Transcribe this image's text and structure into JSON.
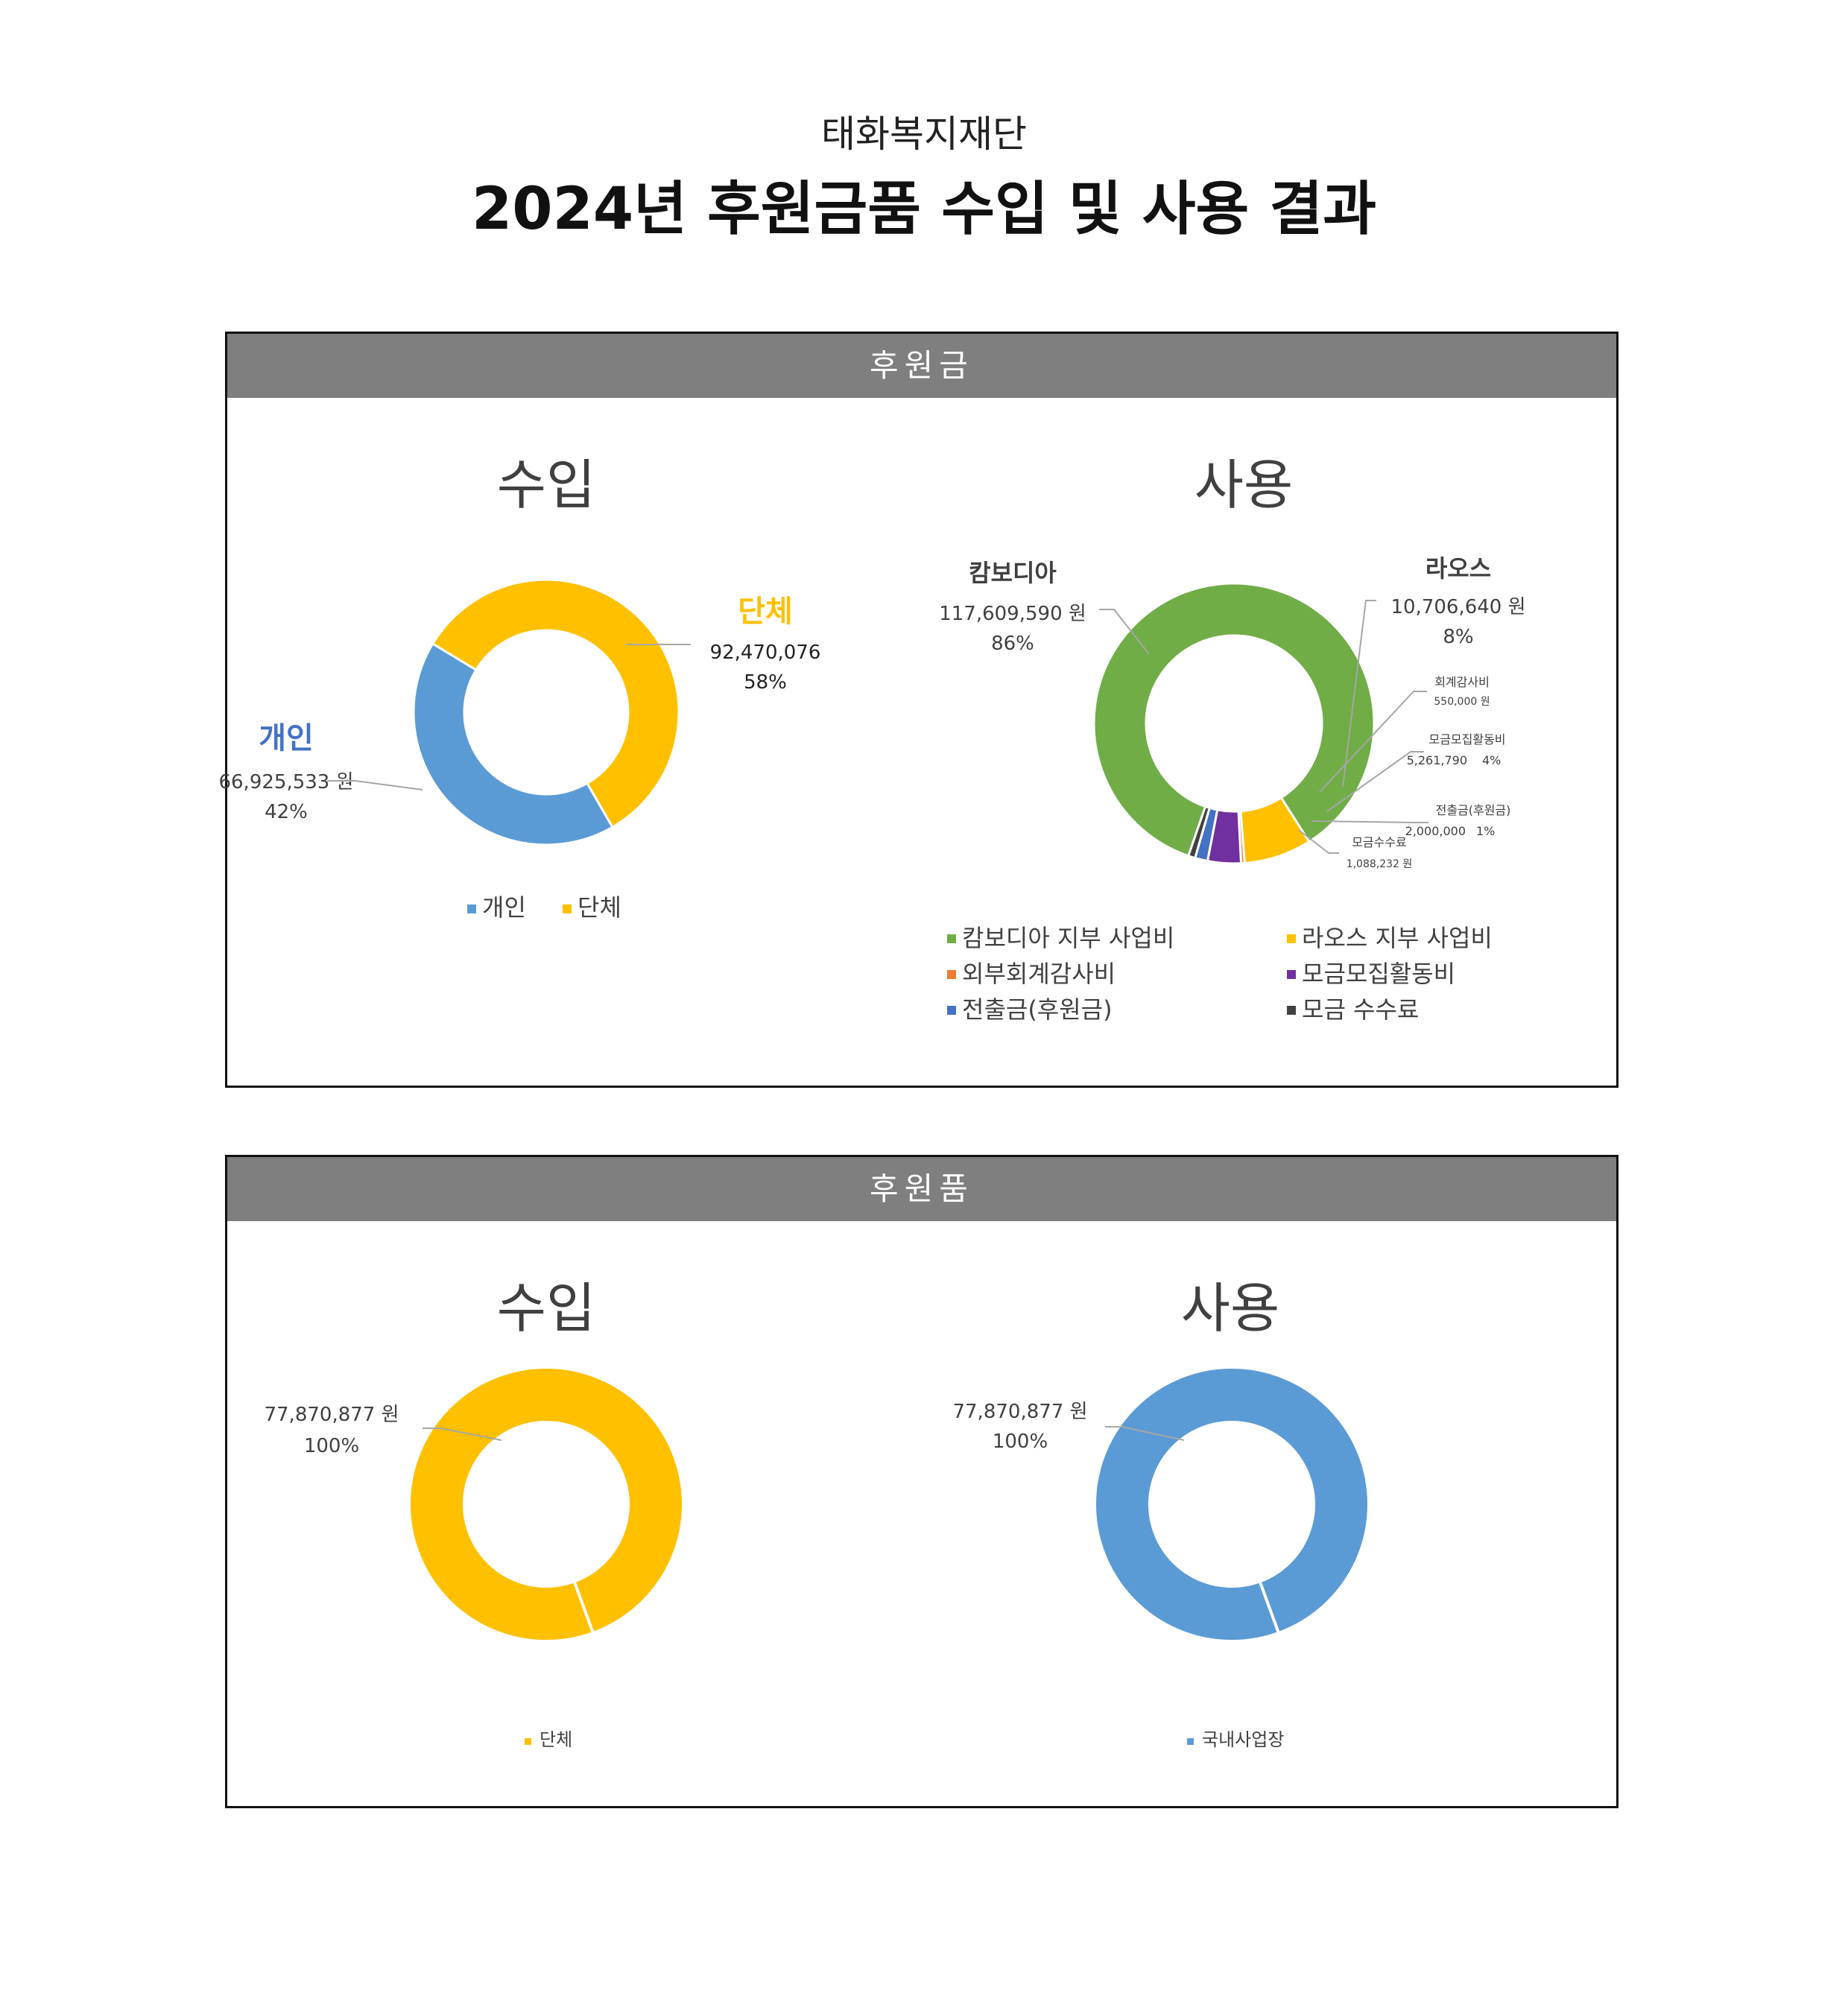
{
  "header": {
    "org": "태화복지재단",
    "title": "2024년 후원금품 수입 및 사용 결과"
  },
  "colors": {
    "blue": "#5b9bd5",
    "yellow": "#ffc000",
    "green": "#70ad47",
    "orange": "#ed7d31",
    "purple": "#7030a0",
    "darkblue": "#4472c4",
    "darkgray": "#404040",
    "header_gray": "#7f7f7f"
  },
  "panels": [
    {
      "title": "후원금"
    },
    {
      "title": "후원품"
    }
  ],
  "chart_data": [
    {
      "type": "donut",
      "panel": "후원금",
      "title": "수입",
      "series": [
        {
          "name": "개인",
          "value": 66925533,
          "amount_label": "66,925,533 원",
          "pct_label": "42%",
          "color": "#5b9bd5"
        },
        {
          "name": "단체",
          "value": 92470076,
          "amount_label": "92,470,076",
          "pct_label": "58%",
          "color": "#ffc000"
        }
      ],
      "legend": [
        "개인",
        "단체"
      ],
      "legend_position": "bottom"
    },
    {
      "type": "donut",
      "panel": "후원금",
      "title": "사용",
      "series": [
        {
          "name": "캄보디아 지부 사업비",
          "callout": "캄보디아",
          "value": 117609590,
          "amount_label": "117,609,590 원",
          "pct_label": "86%",
          "color": "#70ad47"
        },
        {
          "name": "라오스 지부 사업비",
          "callout": "라오스",
          "value": 10706640,
          "amount_label": "10,706,640 원",
          "pct_label": "8%",
          "color": "#ffc000"
        },
        {
          "name": "외부회계감사비",
          "callout": "회계감사비",
          "value": 550000,
          "amount_label": "550,000 원",
          "pct_label": "",
          "color": "#ed7d31"
        },
        {
          "name": "모금모집활동비",
          "callout": "모금모집활동비",
          "value": 5261790,
          "amount_label": "5,261,790",
          "pct_label": "4%",
          "color": "#7030a0"
        },
        {
          "name": "전출금(후원금)",
          "callout": "전출금(후원금)",
          "value": 2000000,
          "amount_label": "2,000,000",
          "pct_label": "1%",
          "color": "#4472c4"
        },
        {
          "name": "모금 수수료",
          "callout": "모금수수료",
          "value": 1088232,
          "amount_label": "1,088,232 원",
          "pct_label": "",
          "color": "#404040"
        }
      ],
      "legend_position": "bottom"
    },
    {
      "type": "donut",
      "panel": "후원품",
      "title": "수입",
      "series": [
        {
          "name": "단체",
          "value": 77870877,
          "amount_label": "77,870,877 원",
          "pct_label": "100%",
          "color": "#ffc000"
        }
      ],
      "legend": [
        "단체"
      ],
      "legend_position": "bottom"
    },
    {
      "type": "donut",
      "panel": "후원품",
      "title": "사용",
      "series": [
        {
          "name": "국내사업장",
          "value": 77870877,
          "amount_label": "77,870,877 원",
          "pct_label": "100%",
          "color": "#5b9bd5"
        }
      ],
      "legend": [
        "국내사업장"
      ],
      "legend_position": "bottom"
    }
  ]
}
